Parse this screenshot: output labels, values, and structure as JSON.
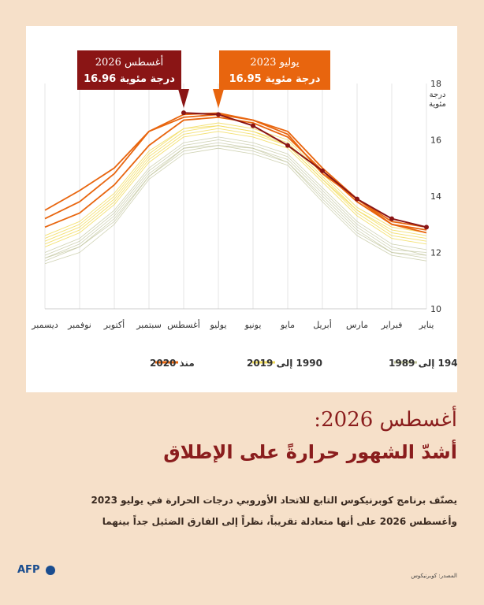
{
  "headline": {
    "line1": "أغسطس 2026:",
    "line2": "أشدّ الشهور حرارةً على الإطلاق"
  },
  "description": {
    "line1": "يصنّف برنامج كوبرنيكوس التابع للاتحاد الأوروبي درجات الحرارة في يوليو 2023",
    "line2": "وأغسطس 2026 على أنها متعادلة تقريباً، نظراً إلى الفارق الضئيل جداً بينهما"
  },
  "source": "المصدر: كوبرنيكوس",
  "logo": "AFP",
  "colors": {
    "background": "#f6e0c9",
    "callout_2026": "#8a1515",
    "callout_2023": "#e8650e",
    "series_1940_1989": "#bfc39a",
    "series_1990_2019": "#f2dc5a",
    "series_2020": "#e8650e",
    "series_2026": "#8a1515"
  },
  "chart_data": {
    "type": "line",
    "x": [
      "يناير",
      "فبراير",
      "مارس",
      "أبريل",
      "مايو",
      "يونيو",
      "يوليو",
      "أغسطس",
      "سبتمبر",
      "أكتوبر",
      "نوفمبر",
      "ديسمبر"
    ],
    "x_direction": "right-to-left",
    "ylim": [
      10,
      18
    ],
    "yticks": [
      10,
      12,
      14,
      16,
      18
    ],
    "yunit": "درجة مئوية",
    "grid": "vertical",
    "legend": {
      "placement": "bottom",
      "items": [
        {
          "label": "1940 إلى 1989",
          "color": "#bfc39a"
        },
        {
          "label": "1990 إلى 2019",
          "color": "#f2dc5a"
        },
        {
          "label": "منذ 2020",
          "color": "#e8650e"
        }
      ]
    },
    "series": [
      {
        "group": "1940-1989",
        "values": [
          12.0,
          12.1,
          12.9,
          14.1,
          15.3,
          15.7,
          15.9,
          15.7,
          14.8,
          13.3,
          12.3,
          11.8
        ]
      },
      {
        "group": "1940-1989",
        "values": [
          11.8,
          12.0,
          12.7,
          13.9,
          15.2,
          15.6,
          15.8,
          15.6,
          14.7,
          13.1,
          12.2,
          11.7
        ]
      },
      {
        "group": "1940-1989",
        "values": [
          11.9,
          12.2,
          13.0,
          14.2,
          15.4,
          15.8,
          16.0,
          15.8,
          14.9,
          13.4,
          12.4,
          11.9
        ]
      },
      {
        "group": "1940-1989",
        "values": [
          11.7,
          11.9,
          12.6,
          13.8,
          15.1,
          15.5,
          15.7,
          15.5,
          14.6,
          13.0,
          12.0,
          11.6
        ]
      },
      {
        "group": "1940-1989",
        "values": [
          12.1,
          12.3,
          13.1,
          14.3,
          15.5,
          15.9,
          16.1,
          15.9,
          15.0,
          13.5,
          12.5,
          12.0
        ]
      },
      {
        "group": "1940-1989",
        "values": [
          11.9,
          12.0,
          12.8,
          14.0,
          15.2,
          15.7,
          15.8,
          15.7,
          14.7,
          13.2,
          12.2,
          11.8
        ]
      },
      {
        "group": "1990-2019",
        "values": [
          12.3,
          12.5,
          13.3,
          14.5,
          15.7,
          16.1,
          16.3,
          16.1,
          15.2,
          13.7,
          12.7,
          12.2
        ]
      },
      {
        "group": "1990-2019",
        "values": [
          12.5,
          12.7,
          13.5,
          14.6,
          15.8,
          16.3,
          16.5,
          16.3,
          15.4,
          13.9,
          12.9,
          12.4
        ]
      },
      {
        "group": "1990-2019",
        "values": [
          12.4,
          12.6,
          13.4,
          14.6,
          15.8,
          16.2,
          16.4,
          16.2,
          15.3,
          13.8,
          12.8,
          12.3
        ]
      },
      {
        "group": "1990-2019",
        "values": [
          12.7,
          12.9,
          13.6,
          14.8,
          16.0,
          16.4,
          16.6,
          16.4,
          15.6,
          14.1,
          13.1,
          12.6
        ]
      },
      {
        "group": "1990-2019",
        "values": [
          12.6,
          12.8,
          13.5,
          14.7,
          15.9,
          16.3,
          16.5,
          16.4,
          15.5,
          14.0,
          13.0,
          12.5
        ]
      },
      {
        "group": "since-2020",
        "values": [
          12.8,
          13.0,
          13.8,
          14.9,
          16.1,
          16.6,
          16.8,
          16.7,
          15.8,
          14.4,
          13.4,
          12.9
        ]
      },
      {
        "group": "since-2020",
        "values": [
          12.9,
          13.1,
          13.9,
          15.0,
          16.3,
          16.7,
          16.9,
          16.8,
          16.3,
          14.8,
          13.8,
          13.2
        ]
      },
      {
        "group": "since-2020",
        "values": [
          12.7,
          13.0,
          13.9,
          14.8,
          16.2,
          16.7,
          16.95,
          16.9,
          16.3,
          15.0,
          14.2,
          13.5
        ]
      },
      {
        "group": "2026",
        "values": [
          12.9,
          13.2,
          13.9,
          14.9,
          15.8,
          16.5,
          16.9,
          16.96,
          null,
          null,
          null,
          null
        ]
      }
    ],
    "annotations": [
      {
        "title": "أغسطس 2026",
        "value": "16.96 درجة مئوية",
        "x": "أغسطس",
        "y": 16.96
      },
      {
        "title": "يوليو 2023",
        "value": "16.95 درجة مئوية",
        "x": "يوليو",
        "y": 16.95
      }
    ]
  }
}
